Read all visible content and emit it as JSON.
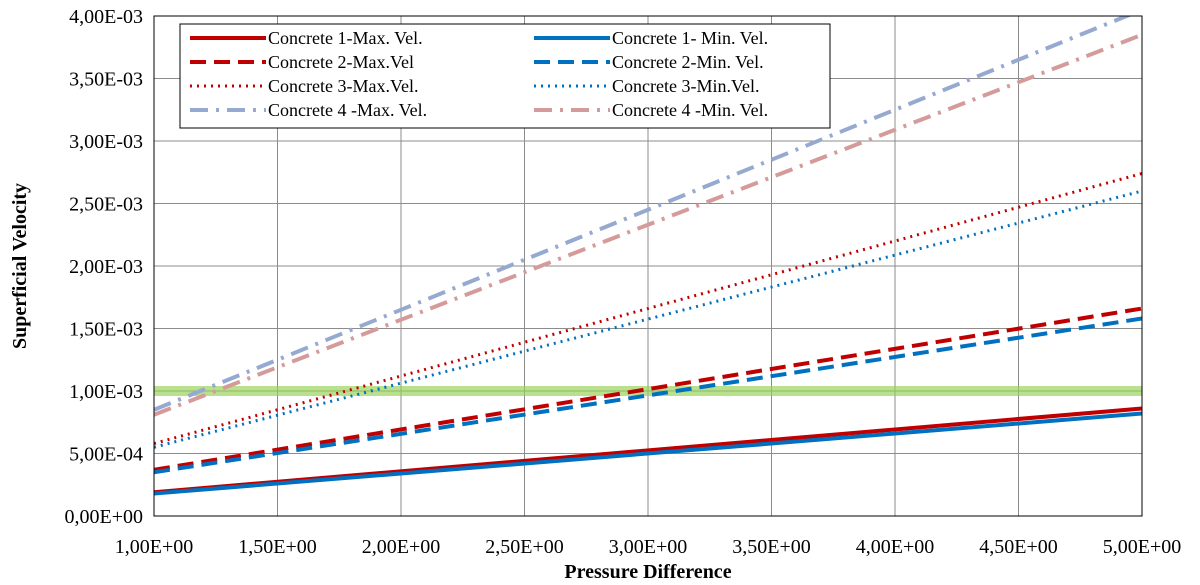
{
  "chart_data": {
    "type": "line",
    "xlabel": "Pressure Difference",
    "ylabel": "Superficial Velocity",
    "xlim": [
      1.0,
      5.0
    ],
    "ylim": [
      0.0,
      0.004
    ],
    "x_ticks": [
      1.0,
      1.5,
      2.0,
      2.5,
      3.0,
      3.5,
      4.0,
      4.5,
      5.0
    ],
    "x_tick_labels": [
      "1,00E+00",
      "1,50E+00",
      "2,00E+00",
      "2,50E+00",
      "3,00E+00",
      "3,50E+00",
      "4,00E+00",
      "4,50E+00",
      "5,00E+00"
    ],
    "y_ticks": [
      0.0,
      0.0005,
      0.001,
      0.0015,
      0.002,
      0.0025,
      0.003,
      0.0035,
      0.004
    ],
    "y_tick_labels": [
      "0,00E+00",
      "5,00E-04",
      "1,00E-03",
      "1,50E-03",
      "2,00E-03",
      "2,50E-03",
      "3,00E-03",
      "3,50E-03",
      "4,00E-03"
    ],
    "grid": true,
    "legend_position": "top-left",
    "highlight_band": {
      "y_from": 0.00096,
      "y_to": 0.00104,
      "color": "#92d050"
    },
    "series": [
      {
        "name": "Concrete 1-Max. Vel.",
        "color": "#c00000",
        "style": "solid",
        "x": [
          1.0,
          5.0
        ],
        "y": [
          0.00019,
          0.00086
        ]
      },
      {
        "name": "Concrete 1- Min. Vel.",
        "color": "#0070c0",
        "style": "solid",
        "x": [
          1.0,
          5.0
        ],
        "y": [
          0.00018,
          0.00082
        ]
      },
      {
        "name": "Concrete 2-Max.Vel",
        "color": "#c00000",
        "style": "dash",
        "x": [
          1.0,
          5.0
        ],
        "y": [
          0.00037,
          0.00166
        ]
      },
      {
        "name": "Concrete 2-Min. Vel.",
        "color": "#0070c0",
        "style": "dash",
        "x": [
          1.0,
          5.0
        ],
        "y": [
          0.00035,
          0.00158
        ]
      },
      {
        "name": "Concrete 3-Max.Vel.",
        "color": "#c00000",
        "style": "dot",
        "x": [
          1.0,
          5.0
        ],
        "y": [
          0.00058,
          0.00274
        ]
      },
      {
        "name": "Concrete 3-Min.Vel.",
        "color": "#0070c0",
        "style": "dot",
        "x": [
          1.0,
          5.0
        ],
        "y": [
          0.00055,
          0.0026
        ]
      },
      {
        "name": "Concrete 4 -Max. Vel.",
        "color": "#95a9d1",
        "style": "dashdot",
        "x": [
          1.0,
          5.0
        ],
        "y": [
          0.00085,
          0.00405
        ]
      },
      {
        "name": "Concrete 4 -Min. Vel.",
        "color": "#d59b9b",
        "style": "dashdot",
        "x": [
          1.0,
          5.0
        ],
        "y": [
          0.00081,
          0.00385
        ]
      }
    ]
  }
}
